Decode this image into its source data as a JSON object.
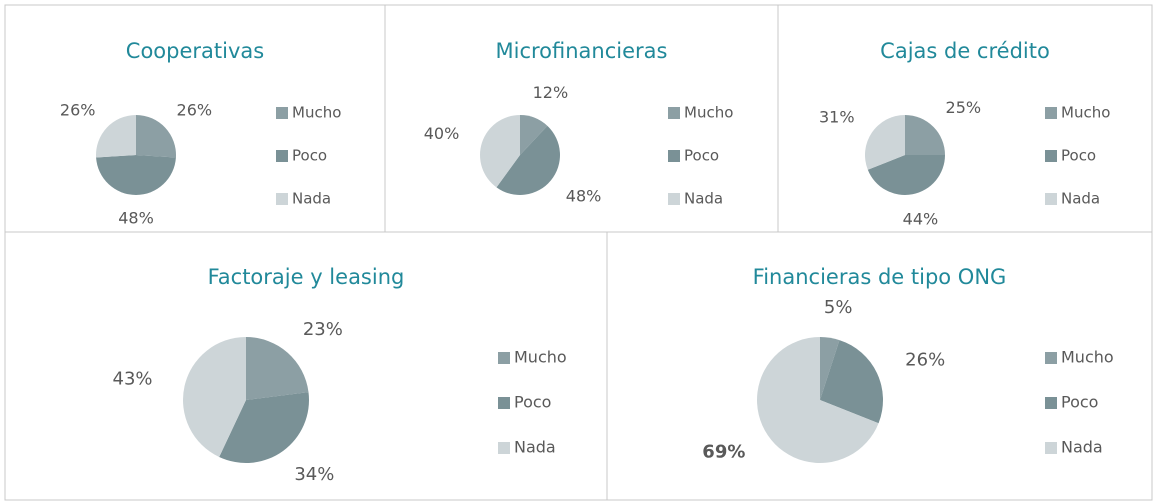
{
  "chart_data": [
    {
      "type": "pie",
      "title": "Cooperativas",
      "categories": [
        "Mucho",
        "Poco",
        "Nada"
      ],
      "values": [
        26,
        48,
        26
      ],
      "value_labels": [
        "26%",
        "48%",
        "26%"
      ],
      "colors": [
        "#8c9fa4",
        "#7a9196",
        "#cdd5d8"
      ]
    },
    {
      "type": "pie",
      "title": "Microfinancieras",
      "categories": [
        "Mucho",
        "Poco",
        "Nada"
      ],
      "values": [
        12,
        48,
        40
      ],
      "value_labels": [
        "12%",
        "48%",
        "40%"
      ],
      "colors": [
        "#8c9fa4",
        "#7a9196",
        "#cdd5d8"
      ]
    },
    {
      "type": "pie",
      "title": "Cajas de crédito",
      "categories": [
        "Mucho",
        "Poco",
        "Nada"
      ],
      "values": [
        25,
        44,
        31
      ],
      "value_labels": [
        "25%",
        "44%",
        "31%"
      ],
      "colors": [
        "#8c9fa4",
        "#7a9196",
        "#cdd5d8"
      ]
    },
    {
      "type": "pie",
      "title": "Factoraje y leasing",
      "categories": [
        "Mucho",
        "Poco",
        "Nada"
      ],
      "values": [
        23,
        34,
        43
      ],
      "value_labels": [
        "23%",
        "34%",
        "43%"
      ],
      "colors": [
        "#8c9fa4",
        "#7a9196",
        "#cdd5d8"
      ]
    },
    {
      "type": "pie",
      "title": "Financieras de tipo ONG",
      "categories": [
        "Mucho",
        "Poco",
        "Nada"
      ],
      "values": [
        5,
        26,
        69
      ],
      "value_labels": [
        "5%",
        "26%",
        "69%"
      ],
      "colors": [
        "#8c9fa4",
        "#7a9196",
        "#cdd5d8"
      ]
    }
  ]
}
